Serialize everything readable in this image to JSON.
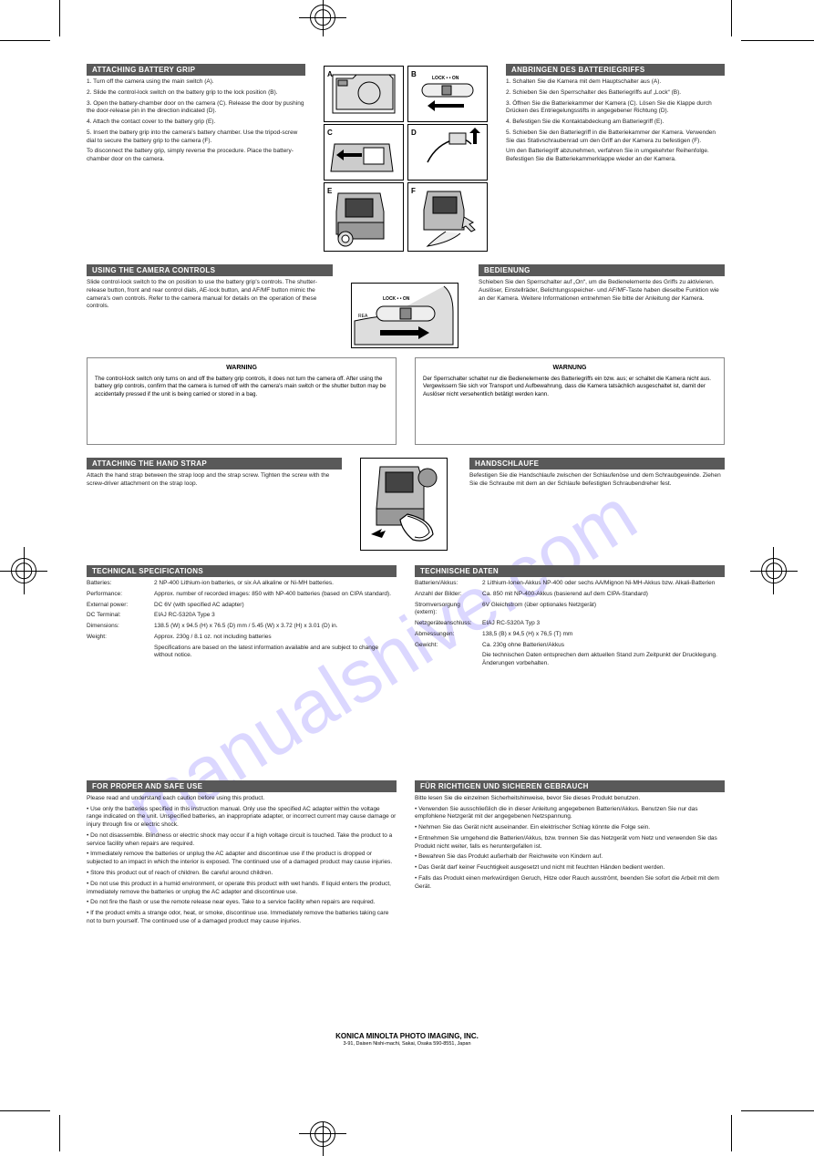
{
  "crops": {
    "color": "#000000"
  },
  "sections": {
    "attaching_en": {
      "title": "ATTACHING BATTERY GRIP",
      "steps": [
        "1. Turn off the camera using the main switch (A).",
        "2. Slide the control-lock switch on the battery grip to the lock position (B).",
        "3. Open the battery-chamber door on the camera (C). Release the door by pushing the door-release pin in the direction indicated (D).",
        "4. Attach the contact cover to the battery grip (E).",
        "5. Insert the battery grip into the camera's battery chamber. Use the tripod-screw dial to secure the battery grip to the camera (F).",
        "To disconnect the battery grip, simply reverse the procedure. Place the battery-chamber door on the camera."
      ]
    },
    "attaching_de": {
      "title": "ANBRINGEN DES BATTERIEGRIFFS",
      "steps": [
        "1. Schalten Sie die Kamera mit dem Hauptschalter aus (A).",
        "2. Schieben Sie den Sperrschalter des Batteriegriffs auf „Lock“ (B).",
        "3. Öffnen Sie die Batteriekammer der Kamera (C). Lösen Sie die Klappe durch Drücken des Entriegelungsstifts in angegebener Richtung (D).",
        "4. Befestigen Sie die Kontaktabdeckung am Batteriegriff (E).",
        "5. Schieben Sie den Batteriegriff in die Batteriekammer der Kamera. Verwenden Sie das Stativschraubenrad um den Griff an der Kamera zu befestigen (F).",
        "Um den Batteriegriff abzunehmen, verfahren Sie in umgekehrter Reihenfolge. Befestigen Sie die Batteriekammerklappe wieder an der Kamera."
      ]
    },
    "controls_en": {
      "title": "USING THE CAMERA CONTROLS",
      "text": "Slide control-lock switch to the on position to use the battery grip's controls. The shutter-release button, front and rear control dials, AE-lock button, and AF/MF button mimic the camera's own controls. Refer to the camera manual for details on the operation of these controls."
    },
    "controls_de": {
      "title": "BEDIENUNG",
      "text": "Schieben Sie den Sperrschalter auf „On“, um die Bedienelemente des Griffs zu aktivieren. Auslöser, Einstellräder, Belichtungsspeicher- und AF/MF-Taste haben dieselbe Funktion wie an der Kamera. Weitere Informationen entnehmen Sie bitte der Anleitung der Kamera."
    },
    "warning_en": {
      "title": "WARNING",
      "text": "The control-lock switch only turns on and off the battery grip controls, it does not turn the camera off. After using the battery grip controls, confirm that the camera is turned off with the camera's main switch or the shutter button may be accidentally pressed if the unit is being carried or stored in a bag."
    },
    "warning_de": {
      "title": "WARNUNG",
      "text": "Der Sperrschalter schaltet nur die Bedienelemente des Batteriegriffs ein bzw. aus; er schaltet die Kamera nicht aus. Vergewissern Sie sich vor Transport und Aufbewahrung, dass die Kamera tatsächlich ausgeschaltet ist, damit der Auslöser nicht versehentlich betätigt werden kann."
    },
    "strap_en": {
      "title": "ATTACHING THE HAND STRAP",
      "text": "Attach the hand strap between the strap loop and the strap screw. Tighten the screw with the screw-driver attachment on the strap loop."
    },
    "strap_de": {
      "title": "HANDSCHLAUFE",
      "text": "Befestigen Sie die Handschlaufe zwischen der Schlaufenöse und dem Schraubgewinde. Ziehen Sie die Schraube mit dem an der Schlaufe befestigten Schraubendreher fest."
    },
    "spec_en": {
      "title": "TECHNICAL SPECIFICATIONS",
      "rows": [
        [
          "Batteries:",
          "2 NP-400 Lithium-ion batteries, or six AA alkaline or Ni-MH batteries."
        ],
        [
          "Performance:",
          "Approx. number of recorded images: 850 with NP-400 batteries (based on CIPA standard)."
        ],
        [
          "External power:",
          "DC 6V (with specified AC adapter)"
        ],
        [
          "DC Terminal:",
          "EIAJ RC-5320A Type 3"
        ],
        [
          "Dimensions:",
          "138.5 (W) x 94.5 (H) x 76.5 (D) mm / 5.45 (W) x 3.72 (H) x 3.01 (D) in."
        ],
        [
          "Weight:",
          "Approx. 230g / 8.1 oz. not including batteries"
        ],
        [
          "",
          "Specifications are based on the latest information available and are subject to change without notice."
        ]
      ]
    },
    "spec_de": {
      "title": "TECHNISCHE DATEN",
      "rows": [
        [
          "Batterien/Akkus:",
          "2 Lithium-Ionen-Akkus NP-400 oder sechs AA/Mignon Ni-MH-Akkus bzw. Alkali-Batterien"
        ],
        [
          "Anzahl der Bilder:",
          "Ca. 850 mit NP-400-Akkus (basierend auf dem CIPA-Standard)"
        ],
        [
          "Stromversorgung (extern):",
          "6V Gleichstrom (über optionales Netzgerät)"
        ],
        [
          "Netzgeräteanschluss:",
          "EIAJ RC-5320A Typ 3"
        ],
        [
          "Abmessungen:",
          "138,5 (B) x 94,5 (H) x 76,5 (T) mm"
        ],
        [
          "Gewicht:",
          "Ca. 230g ohne Batterien/Akkus"
        ],
        [
          "",
          "Die technischen Daten entsprechen dem aktuellen Stand zum Zeitpunkt der Drucklegung. Änderungen vorbehalten."
        ]
      ]
    },
    "safety_en": {
      "title": "FOR PROPER AND SAFE USE",
      "text": [
        "Please read and understand each caution before using this product.",
        "• Use only the batteries specified in this instruction manual. Only use the specified AC adapter within the voltage range indicated on the unit. Unspecified batteries, an inappropriate adapter, or incorrect current may cause damage or injury through fire or electric shock.",
        "• Do not disassemble. Blindness or electric shock may occur if a high voltage circuit is touched. Take the product to a service facility when repairs are required.",
        "• Immediately remove the batteries or unplug the AC adapter and discontinue use if the product is dropped or subjected to an impact in which the interior is exposed. The continued use of a damaged product may cause injuries.",
        "• Store this product out of reach of children. Be careful around children.",
        "• Do not use this product in a humid environment, or operate this product with wet hands. If liquid enters the product, immediately remove the batteries or unplug the AC adapter and discontinue use.",
        "• Do not fire the flash or use the remote release near eyes. Take to a service facility when repairs are required.",
        "• If the product emits a strange odor, heat, or smoke, discontinue use. Immediately remove the batteries taking care not to burn yourself. The continued use of a damaged product may cause injuries."
      ]
    },
    "safety_de": {
      "title": "FÜR RICHTIGEN UND SICHEREN GEBRAUCH",
      "text": [
        "Bitte lesen Sie die einzelnen Sicherheitshinweise, bevor Sie dieses Produkt benutzen.",
        "• Verwenden Sie ausschließlich die in dieser Anleitung angegebenen Batterien/Akkus. Benutzen Sie nur das empfohlene Netzgerät mit der angegebenen Netzspannung.",
        "• Nehmen Sie das Gerät nicht auseinander. Ein elektrischer Schlag könnte die Folge sein.",
        "• Entnehmen Sie umgehend die Batterien/Akkus, bzw. trennen Sie das Netzgerät vom Netz und verwenden Sie das Produkt nicht weiter, falls es heruntergefallen ist.",
        "• Bewahren Sie das Produkt außerhalb der Reichweite von Kindern auf.",
        "• Das Gerät darf keiner Feuchtigkeit ausgesetzt und nicht mit feuchten Händen bedient werden.",
        "• Falls das Produkt einen merkwürdigen Geruch, Hitze oder Rauch ausströmt, beenden Sie sofort die Arbeit mit dem Gerät."
      ]
    }
  },
  "watermark": "manualshive.com",
  "footer": {
    "company": "KONICA MINOLTA PHOTO IMAGING, INC.",
    "address": "3-91, Daisen Nishi-machi, Sakai, Osaka 590-8551, Japan"
  },
  "lock_on_label": "LOCK • • ON"
}
